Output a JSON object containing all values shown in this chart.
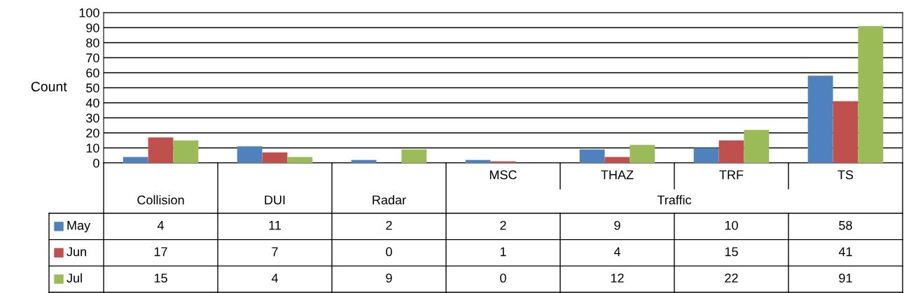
{
  "chart_data": {
    "type": "bar",
    "ylabel": "Count",
    "categories": [
      "Collision",
      "DUI",
      "Radar",
      "MSC",
      "THAZ",
      "TRF",
      "TS"
    ],
    "annotations": [
      "Traffic"
    ],
    "series": [
      {
        "name": "May",
        "color": "#4f81bd",
        "values": [
          4,
          11,
          2,
          2,
          9,
          10,
          58
        ]
      },
      {
        "name": "Jun",
        "color": "#c0504d",
        "values": [
          17,
          7,
          0,
          1,
          4,
          15,
          41
        ]
      },
      {
        "name": "Jul",
        "color": "#9bbb59",
        "values": [
          15,
          4,
          9,
          0,
          12,
          22,
          91
        ]
      }
    ],
    "ylim": [
      0,
      100
    ],
    "yticks": [
      0,
      10,
      20,
      30,
      40,
      50,
      60,
      70,
      80,
      90,
      100
    ],
    "grid": "y",
    "legend": "bottom left",
    "data_labels": true
  }
}
